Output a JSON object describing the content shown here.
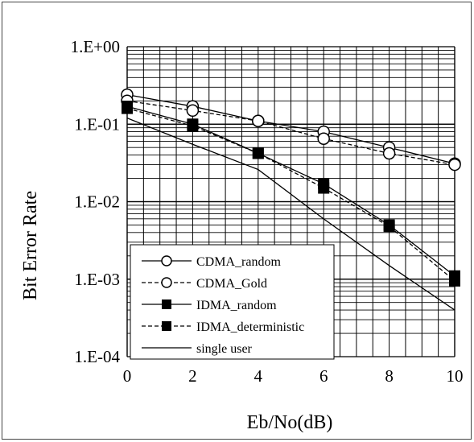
{
  "chart_data": {
    "type": "line",
    "title": "",
    "xlabel": "Eb/No(dB)",
    "ylabel": "Bit Error Rate",
    "x_ticks": [
      "0",
      "2",
      "4",
      "6",
      "8",
      "10"
    ],
    "y_ticks": [
      "1.E+00",
      "1.E-01",
      "1.E-02",
      "1.E-03",
      "1.E-04"
    ],
    "xlim": [
      0,
      10
    ],
    "ylim": [
      0.0001,
      1
    ],
    "yscale": "log",
    "grid": true,
    "legend_position": "bottom-left",
    "series": [
      {
        "name": "CDMA_random",
        "x": [
          0,
          2,
          4,
          6,
          8,
          10
        ],
        "y": [
          0.24,
          0.17,
          0.11,
          0.08,
          0.05,
          0.031
        ],
        "marker": "open-circle",
        "line": "solid"
      },
      {
        "name": "CDMA_Gold",
        "x": [
          0,
          2,
          4,
          6,
          8,
          10
        ],
        "y": [
          0.2,
          0.15,
          0.11,
          0.065,
          0.042,
          0.03
        ],
        "marker": "open-circle",
        "line": "dashed"
      },
      {
        "name": "IDMA_random",
        "x": [
          0,
          2,
          4,
          6,
          8,
          10
        ],
        "y": [
          0.17,
          0.1,
          0.042,
          0.017,
          0.005,
          0.0011
        ],
        "marker": "filled-square",
        "line": "solid"
      },
      {
        "name": "IDMA_deterministic",
        "x": [
          0,
          2,
          4,
          6,
          8,
          10
        ],
        "y": [
          0.16,
          0.095,
          0.042,
          0.015,
          0.0048,
          0.00095
        ],
        "marker": "filled-square",
        "line": "dashed"
      },
      {
        "name": "single user",
        "x": [
          0,
          2,
          4,
          6,
          8,
          10
        ],
        "y": [
          0.12,
          0.055,
          0.026,
          0.006,
          0.0015,
          0.0004
        ],
        "marker": "none",
        "line": "solid"
      }
    ]
  }
}
